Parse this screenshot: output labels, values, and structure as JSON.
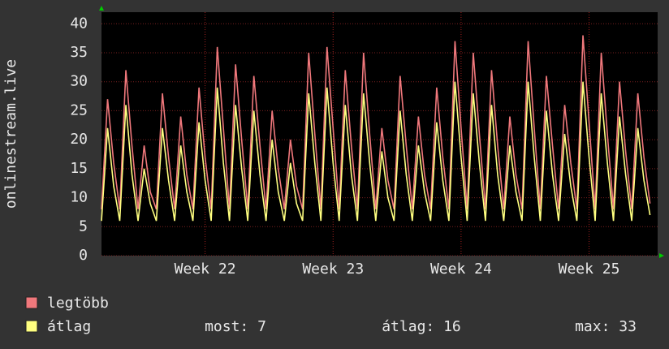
{
  "chart_data": {
    "type": "line",
    "y_label": "onlinestream.live",
    "x": [
      0,
      8,
      16,
      24,
      32,
      40,
      48,
      56,
      64,
      72,
      80,
      88,
      96,
      104,
      112,
      120,
      128,
      136,
      144,
      152,
      160,
      168,
      176,
      184,
      192,
      200,
      208,
      216,
      224,
      232,
      240,
      248,
      256,
      264,
      272,
      280,
      288,
      296,
      304,
      312,
      320,
      328,
      336,
      344,
      352,
      360,
      368,
      376,
      384,
      392,
      400,
      408,
      416,
      424,
      432,
      440,
      448,
      456,
      464,
      472,
      480,
      488,
      496,
      504,
      512,
      520,
      528,
      536,
      544,
      552,
      560,
      568,
      576,
      584,
      592,
      600,
      608,
      616,
      624,
      632,
      640,
      648,
      656,
      664,
      672,
      680,
      688,
      696,
      704,
      712,
      720
    ],
    "series": [
      {
        "name": "legtöbb",
        "color": "#f0787c",
        "values": [
          8,
          27,
          16,
          8,
          32,
          19,
          8,
          19,
          11,
          8,
          28,
          17,
          8,
          24,
          14,
          8,
          29,
          17,
          8,
          36,
          22,
          8,
          33,
          20,
          8,
          31,
          19,
          8,
          25,
          15,
          8,
          20,
          12,
          8,
          35,
          21,
          8,
          36,
          22,
          8,
          32,
          19,
          8,
          35,
          21,
          8,
          22,
          13,
          8,
          31,
          19,
          8,
          24,
          14,
          8,
          29,
          17,
          8,
          37,
          22,
          8,
          35,
          21,
          8,
          32,
          19,
          8,
          24,
          14,
          8,
          37,
          22,
          8,
          31,
          19,
          8,
          26,
          16,
          8,
          38,
          23,
          8,
          35,
          21,
          8,
          30,
          18,
          8,
          28,
          17,
          9
        ]
      },
      {
        "name": "átlag",
        "color": "#ffff80",
        "values": [
          6,
          22,
          12,
          6,
          26,
          14,
          6,
          15,
          9,
          6,
          22,
          13,
          6,
          19,
          11,
          6,
          23,
          13,
          6,
          29,
          16,
          6,
          26,
          15,
          6,
          25,
          14,
          6,
          20,
          11,
          6,
          16,
          9,
          6,
          28,
          16,
          6,
          29,
          16,
          6,
          26,
          14,
          6,
          28,
          16,
          6,
          18,
          10,
          6,
          25,
          14,
          6,
          19,
          11,
          6,
          23,
          13,
          6,
          30,
          17,
          6,
          28,
          16,
          6,
          26,
          14,
          6,
          19,
          11,
          6,
          30,
          17,
          6,
          25,
          14,
          6,
          21,
          12,
          6,
          30,
          17,
          6,
          28,
          16,
          6,
          24,
          14,
          6,
          22,
          13,
          7
        ]
      }
    ],
    "xlim": [
      0,
      730
    ],
    "xticks": [
      {
        "value": 136,
        "label": "Week 22"
      },
      {
        "value": 304,
        "label": "Week 23"
      },
      {
        "value": 472,
        "label": "Week 24"
      },
      {
        "value": 640,
        "label": "Week 25"
      }
    ],
    "ylim": [
      0,
      42
    ],
    "yticks": [
      0,
      5,
      10,
      15,
      20,
      25,
      30,
      35,
      40
    ],
    "grid": true,
    "stats": [
      "most: 7",
      "átlag: 16",
      "max: 33"
    ]
  }
}
